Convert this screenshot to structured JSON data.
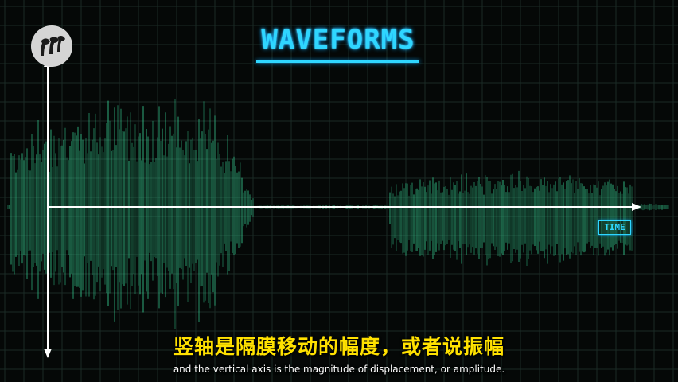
{
  "title": "WAVEFORMS",
  "axis": {
    "time_label": "TIME"
  },
  "logo": {
    "icon": "pbs-logo-icon"
  },
  "subtitles": {
    "chinese": "竖轴是隔膜移动的幅度，或者说振幅",
    "english": "and the vertical axis is the magnitude of displacement, or amplitude."
  },
  "colors": {
    "background": "#050807",
    "grid": "#1a2a25",
    "wave": "#3be2a0",
    "axis": "#ffffff",
    "title": "#2fd6ff",
    "subtitle_zh": "#ffe100",
    "subtitle_en": "#ffffff"
  }
}
